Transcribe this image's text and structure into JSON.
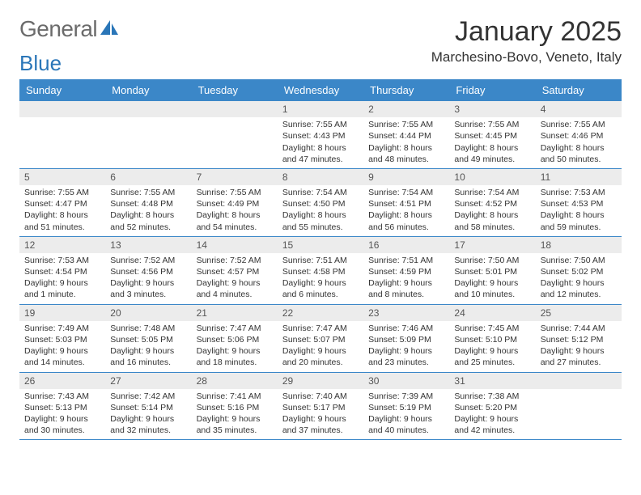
{
  "logo": {
    "text1": "General",
    "text2": "Blue",
    "icon_color": "#2a76b8",
    "text1_color": "#6b6b6b"
  },
  "title": "January 2025",
  "location": "Marchesino-Bovo, Veneto, Italy",
  "colors": {
    "header_bg": "#3b87c8",
    "header_text": "#ffffff",
    "daynum_bg": "#ececec",
    "border": "#3b87c8",
    "text": "#333333",
    "muted": "#555555"
  },
  "day_names": [
    "Sunday",
    "Monday",
    "Tuesday",
    "Wednesday",
    "Thursday",
    "Friday",
    "Saturday"
  ],
  "weeks": [
    [
      {
        "num": "",
        "lines": [
          "",
          "",
          "",
          ""
        ]
      },
      {
        "num": "",
        "lines": [
          "",
          "",
          "",
          ""
        ]
      },
      {
        "num": "",
        "lines": [
          "",
          "",
          "",
          ""
        ]
      },
      {
        "num": "1",
        "lines": [
          "Sunrise: 7:55 AM",
          "Sunset: 4:43 PM",
          "Daylight: 8 hours",
          "and 47 minutes."
        ]
      },
      {
        "num": "2",
        "lines": [
          "Sunrise: 7:55 AM",
          "Sunset: 4:44 PM",
          "Daylight: 8 hours",
          "and 48 minutes."
        ]
      },
      {
        "num": "3",
        "lines": [
          "Sunrise: 7:55 AM",
          "Sunset: 4:45 PM",
          "Daylight: 8 hours",
          "and 49 minutes."
        ]
      },
      {
        "num": "4",
        "lines": [
          "Sunrise: 7:55 AM",
          "Sunset: 4:46 PM",
          "Daylight: 8 hours",
          "and 50 minutes."
        ]
      }
    ],
    [
      {
        "num": "5",
        "lines": [
          "Sunrise: 7:55 AM",
          "Sunset: 4:47 PM",
          "Daylight: 8 hours",
          "and 51 minutes."
        ]
      },
      {
        "num": "6",
        "lines": [
          "Sunrise: 7:55 AM",
          "Sunset: 4:48 PM",
          "Daylight: 8 hours",
          "and 52 minutes."
        ]
      },
      {
        "num": "7",
        "lines": [
          "Sunrise: 7:55 AM",
          "Sunset: 4:49 PM",
          "Daylight: 8 hours",
          "and 54 minutes."
        ]
      },
      {
        "num": "8",
        "lines": [
          "Sunrise: 7:54 AM",
          "Sunset: 4:50 PM",
          "Daylight: 8 hours",
          "and 55 minutes."
        ]
      },
      {
        "num": "9",
        "lines": [
          "Sunrise: 7:54 AM",
          "Sunset: 4:51 PM",
          "Daylight: 8 hours",
          "and 56 minutes."
        ]
      },
      {
        "num": "10",
        "lines": [
          "Sunrise: 7:54 AM",
          "Sunset: 4:52 PM",
          "Daylight: 8 hours",
          "and 58 minutes."
        ]
      },
      {
        "num": "11",
        "lines": [
          "Sunrise: 7:53 AM",
          "Sunset: 4:53 PM",
          "Daylight: 8 hours",
          "and 59 minutes."
        ]
      }
    ],
    [
      {
        "num": "12",
        "lines": [
          "Sunrise: 7:53 AM",
          "Sunset: 4:54 PM",
          "Daylight: 9 hours",
          "and 1 minute."
        ]
      },
      {
        "num": "13",
        "lines": [
          "Sunrise: 7:52 AM",
          "Sunset: 4:56 PM",
          "Daylight: 9 hours",
          "and 3 minutes."
        ]
      },
      {
        "num": "14",
        "lines": [
          "Sunrise: 7:52 AM",
          "Sunset: 4:57 PM",
          "Daylight: 9 hours",
          "and 4 minutes."
        ]
      },
      {
        "num": "15",
        "lines": [
          "Sunrise: 7:51 AM",
          "Sunset: 4:58 PM",
          "Daylight: 9 hours",
          "and 6 minutes."
        ]
      },
      {
        "num": "16",
        "lines": [
          "Sunrise: 7:51 AM",
          "Sunset: 4:59 PM",
          "Daylight: 9 hours",
          "and 8 minutes."
        ]
      },
      {
        "num": "17",
        "lines": [
          "Sunrise: 7:50 AM",
          "Sunset: 5:01 PM",
          "Daylight: 9 hours",
          "and 10 minutes."
        ]
      },
      {
        "num": "18",
        "lines": [
          "Sunrise: 7:50 AM",
          "Sunset: 5:02 PM",
          "Daylight: 9 hours",
          "and 12 minutes."
        ]
      }
    ],
    [
      {
        "num": "19",
        "lines": [
          "Sunrise: 7:49 AM",
          "Sunset: 5:03 PM",
          "Daylight: 9 hours",
          "and 14 minutes."
        ]
      },
      {
        "num": "20",
        "lines": [
          "Sunrise: 7:48 AM",
          "Sunset: 5:05 PM",
          "Daylight: 9 hours",
          "and 16 minutes."
        ]
      },
      {
        "num": "21",
        "lines": [
          "Sunrise: 7:47 AM",
          "Sunset: 5:06 PM",
          "Daylight: 9 hours",
          "and 18 minutes."
        ]
      },
      {
        "num": "22",
        "lines": [
          "Sunrise: 7:47 AM",
          "Sunset: 5:07 PM",
          "Daylight: 9 hours",
          "and 20 minutes."
        ]
      },
      {
        "num": "23",
        "lines": [
          "Sunrise: 7:46 AM",
          "Sunset: 5:09 PM",
          "Daylight: 9 hours",
          "and 23 minutes."
        ]
      },
      {
        "num": "24",
        "lines": [
          "Sunrise: 7:45 AM",
          "Sunset: 5:10 PM",
          "Daylight: 9 hours",
          "and 25 minutes."
        ]
      },
      {
        "num": "25",
        "lines": [
          "Sunrise: 7:44 AM",
          "Sunset: 5:12 PM",
          "Daylight: 9 hours",
          "and 27 minutes."
        ]
      }
    ],
    [
      {
        "num": "26",
        "lines": [
          "Sunrise: 7:43 AM",
          "Sunset: 5:13 PM",
          "Daylight: 9 hours",
          "and 30 minutes."
        ]
      },
      {
        "num": "27",
        "lines": [
          "Sunrise: 7:42 AM",
          "Sunset: 5:14 PM",
          "Daylight: 9 hours",
          "and 32 minutes."
        ]
      },
      {
        "num": "28",
        "lines": [
          "Sunrise: 7:41 AM",
          "Sunset: 5:16 PM",
          "Daylight: 9 hours",
          "and 35 minutes."
        ]
      },
      {
        "num": "29",
        "lines": [
          "Sunrise: 7:40 AM",
          "Sunset: 5:17 PM",
          "Daylight: 9 hours",
          "and 37 minutes."
        ]
      },
      {
        "num": "30",
        "lines": [
          "Sunrise: 7:39 AM",
          "Sunset: 5:19 PM",
          "Daylight: 9 hours",
          "and 40 minutes."
        ]
      },
      {
        "num": "31",
        "lines": [
          "Sunrise: 7:38 AM",
          "Sunset: 5:20 PM",
          "Daylight: 9 hours",
          "and 42 minutes."
        ]
      },
      {
        "num": "",
        "lines": [
          "",
          "",
          "",
          ""
        ]
      }
    ]
  ]
}
